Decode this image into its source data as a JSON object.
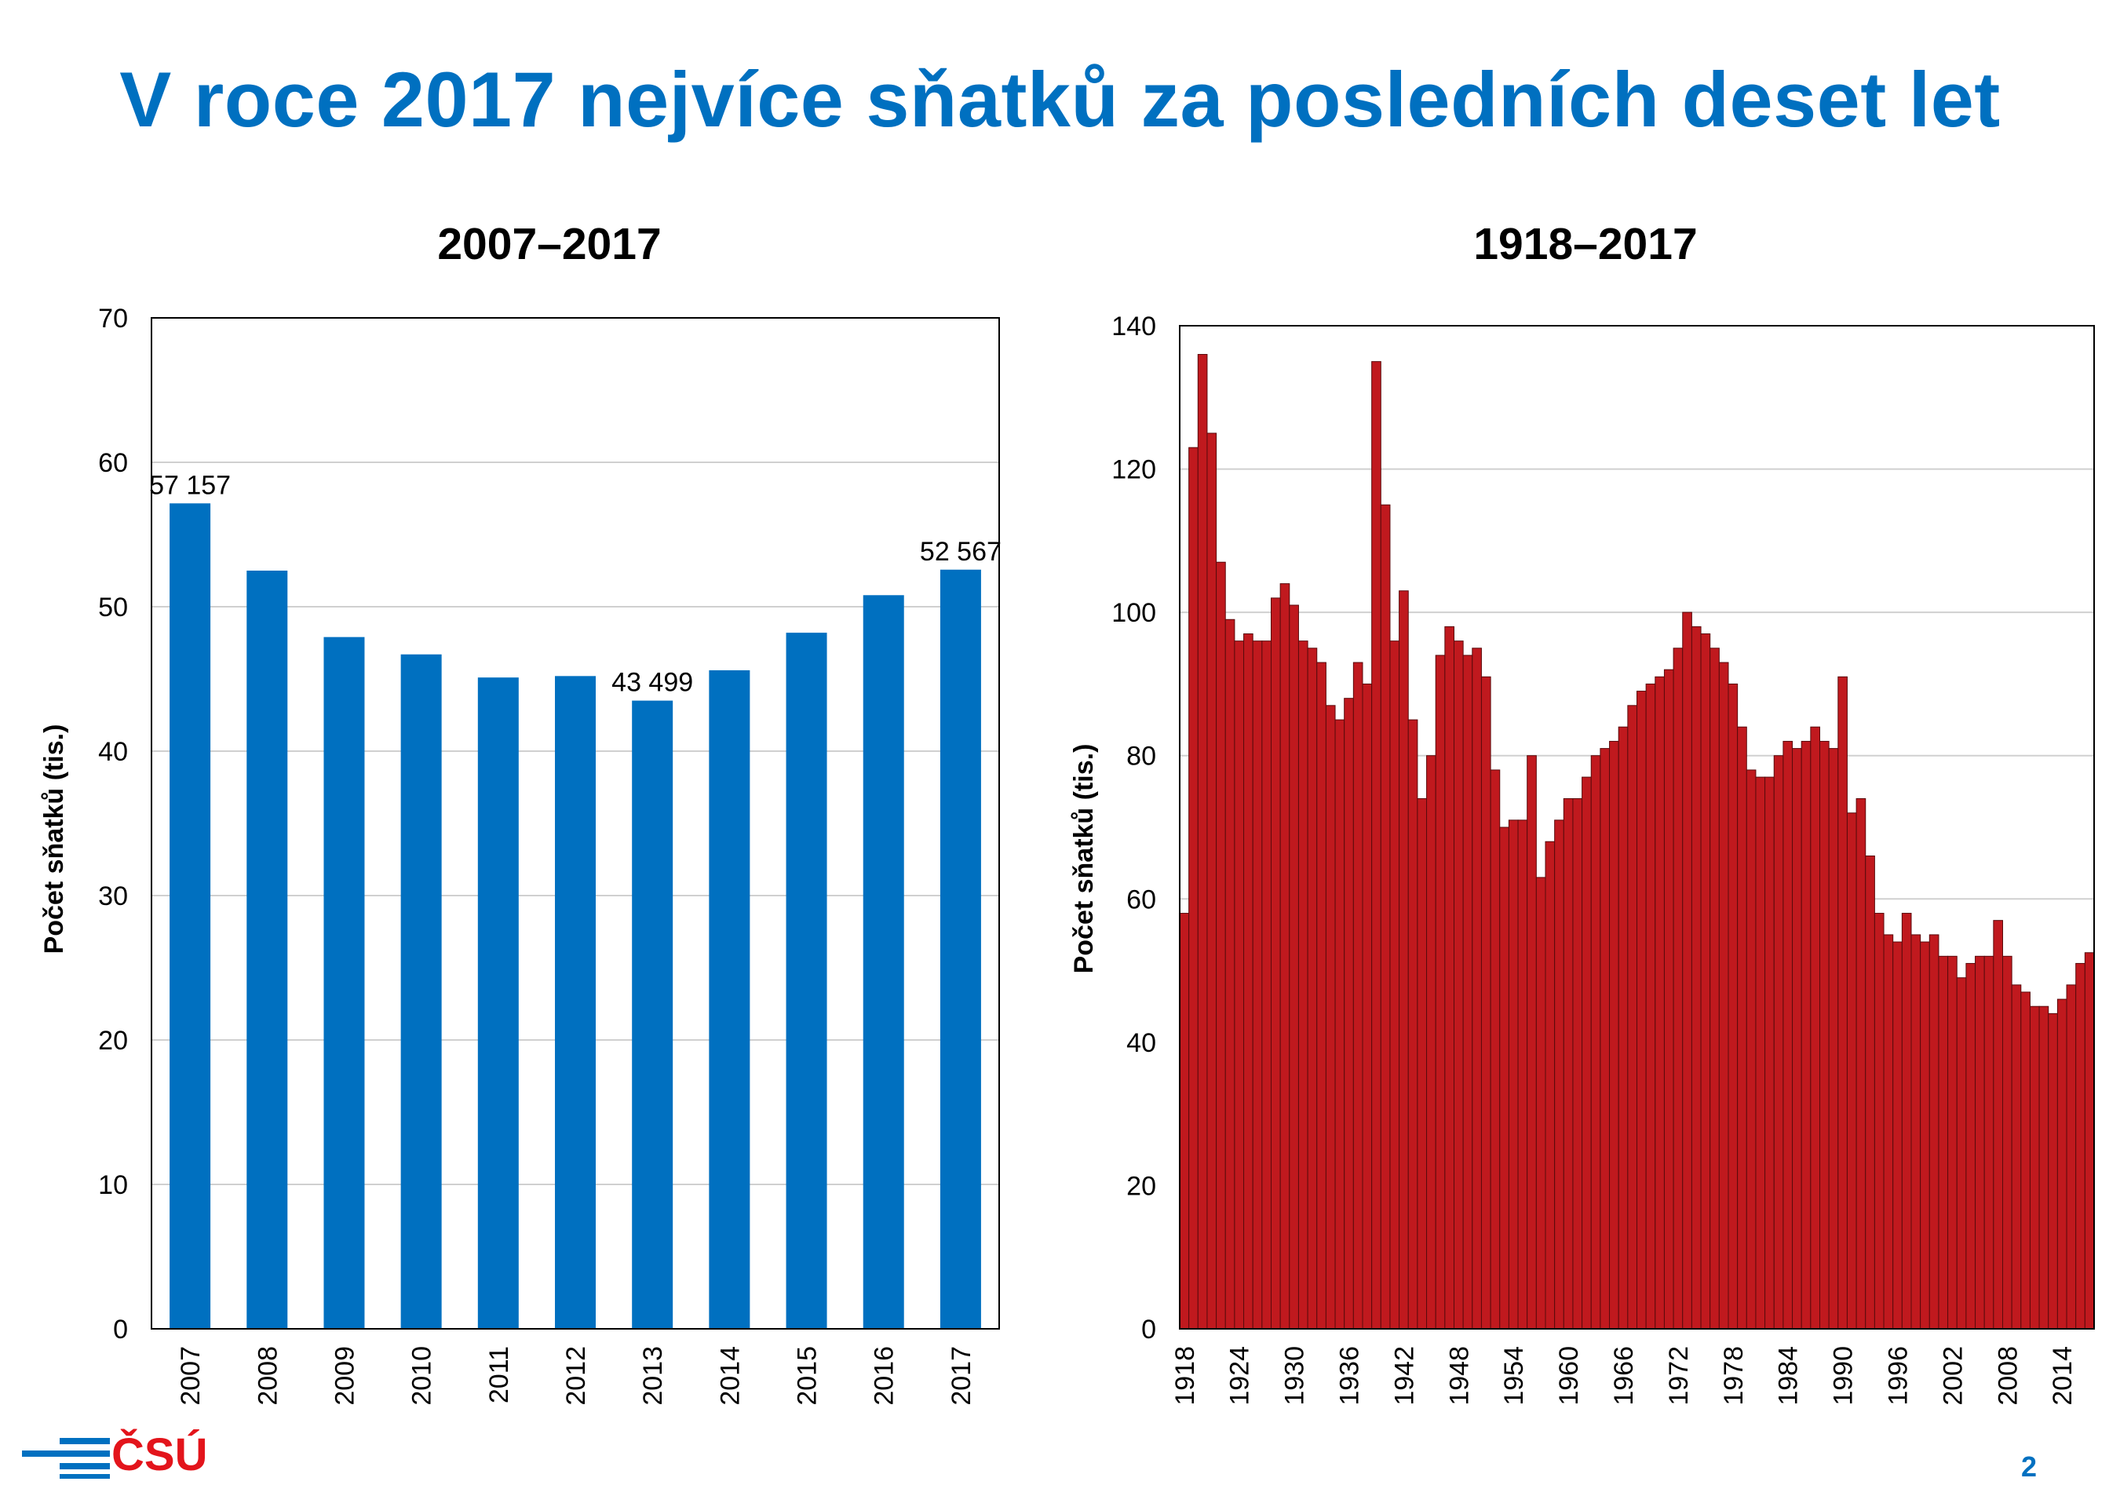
{
  "slide": {
    "title": "V roce 2017 nejvíce sňatků za posledních deset let",
    "page_number": "2",
    "logo_text": "ČSÚ"
  },
  "colors": {
    "title": "#0070C0",
    "left_bars": "#0070C0",
    "right_bars": "#C0191E",
    "logo_red": "#E3141B",
    "logo_blue": "#0070C0"
  },
  "chart_data": [
    {
      "type": "bar",
      "title": "2007–2017",
      "xlabel": "",
      "ylabel": "Počet sňatků (tis.)",
      "ylim": [
        0,
        70
      ],
      "yticks": [
        0,
        10,
        20,
        30,
        40,
        50,
        60,
        70
      ],
      "grid": true,
      "categories": [
        "2007",
        "2008",
        "2009",
        "2010",
        "2011",
        "2012",
        "2013",
        "2014",
        "2015",
        "2016",
        "2017"
      ],
      "values": [
        57.157,
        52.5,
        47.9,
        46.7,
        45.1,
        45.2,
        43.499,
        45.6,
        48.2,
        50.8,
        52.567
      ],
      "annotations": [
        {
          "category": "2007",
          "text": "57 157"
        },
        {
          "category": "2013",
          "text": "43 499"
        },
        {
          "category": "2017",
          "text": "52 567"
        }
      ]
    },
    {
      "type": "bar",
      "title": "1918–2017",
      "xlabel": "",
      "ylabel": "Počet sňatků (tis.)",
      "ylim": [
        0,
        140
      ],
      "yticks": [
        0,
        20,
        40,
        60,
        80,
        100,
        120,
        140
      ],
      "grid": true,
      "x_tick_labels": [
        "1918",
        "1924",
        "1930",
        "1936",
        "1942",
        "1948",
        "1954",
        "1960",
        "1966",
        "1972",
        "1978",
        "1984",
        "1990",
        "1996",
        "2002",
        "2008",
        "2014"
      ],
      "x_start": 1918,
      "x_end": 2017,
      "values": [
        58,
        123,
        136,
        125,
        107,
        99,
        96,
        97,
        96,
        96,
        102,
        104,
        101,
        96,
        95,
        93,
        87,
        85,
        88,
        93,
        90,
        135,
        115,
        96,
        103,
        85,
        74,
        80,
        94,
        98,
        96,
        94,
        95,
        91,
        78,
        70,
        71,
        71,
        80,
        63,
        68,
        71,
        74,
        74,
        77,
        80,
        81,
        82,
        84,
        87,
        89,
        90,
        91,
        92,
        95,
        100,
        98,
        97,
        95,
        93,
        90,
        84,
        78,
        77,
        77,
        80,
        82,
        81,
        82,
        84,
        82,
        81,
        91,
        72,
        74,
        66,
        58,
        55,
        54,
        58,
        55,
        54,
        55,
        52,
        52,
        49,
        51,
        52,
        52,
        57,
        52,
        48,
        47,
        45,
        45,
        44,
        46,
        48,
        51,
        52.5
      ]
    }
  ]
}
